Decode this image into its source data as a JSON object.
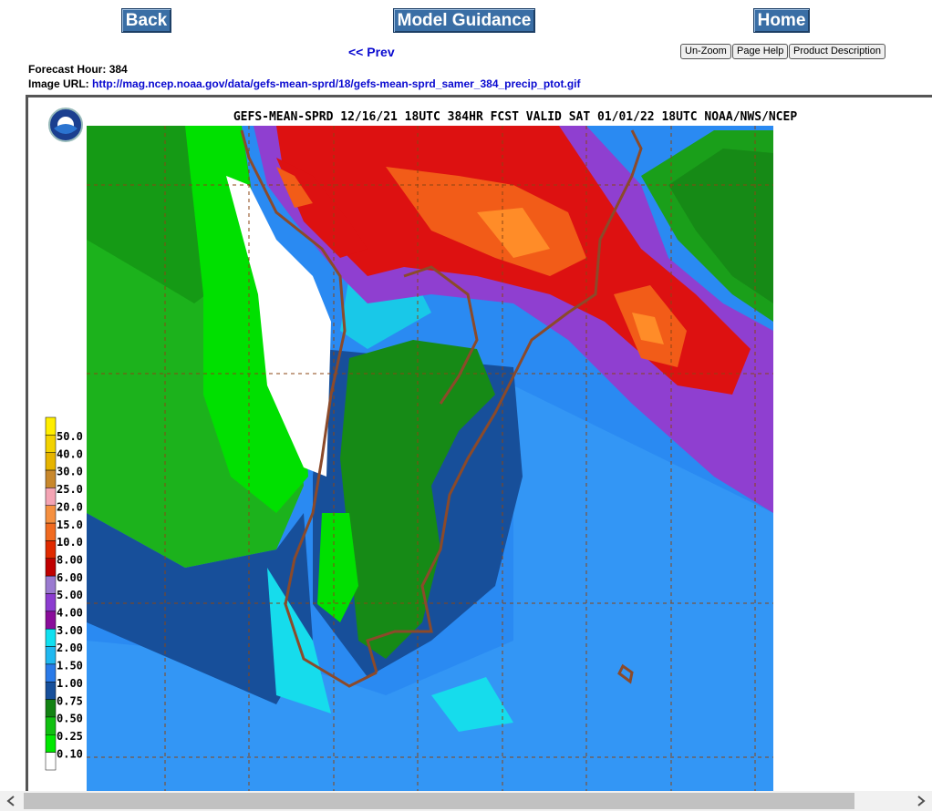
{
  "header": {
    "buttons": [
      "Back",
      "Model Guidance",
      "Home"
    ]
  },
  "nav": {
    "prev": "<< Prev"
  },
  "tools": [
    "Un-Zoom",
    "Page Help",
    "Product Description"
  ],
  "info": {
    "forecast_hour_label": "Forecast Hour:",
    "forecast_hour": "384",
    "image_url_label": "Image URL:",
    "image_url": "http://mag.ncep.noaa.gov/data/gefs-mean-sprd/18/gefs-mean-sprd_samer_384_precip_ptot.gif"
  },
  "map": {
    "title": "GEFS-MEAN-SPRD 12/16/21 18UTC 384HR FCST VALID SAT 01/01/22 18UTC NOAA/NWS/NCEP",
    "legend": [
      "50.0",
      "40.0",
      "30.0",
      "25.0",
      "20.0",
      "15.0",
      "10.0",
      "8.00",
      "6.00",
      "5.00",
      "4.00",
      "3.00",
      "2.00",
      "1.50",
      "1.00",
      "0.75",
      "0.50",
      "0.25",
      "0.10"
    ]
  }
}
